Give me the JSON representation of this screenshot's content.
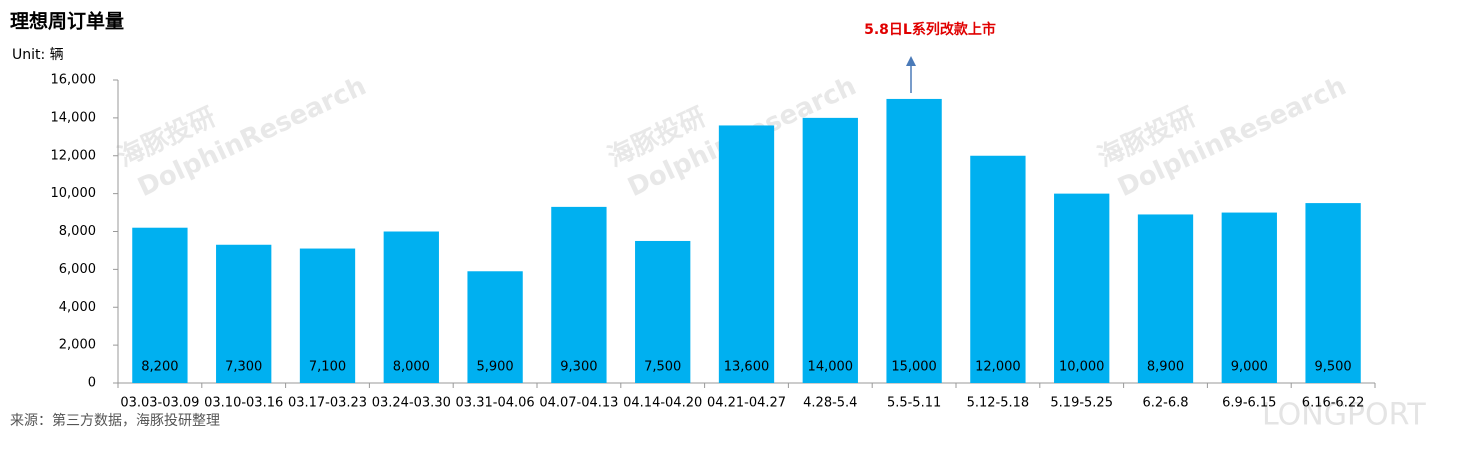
{
  "chart_data": {
    "type": "bar",
    "title": "理想周订单量",
    "unit": "Unit: 辆",
    "annotation": "5.8日L系列改款上市",
    "source": "来源：第三方数据，海豚投研整理",
    "watermarks": [
      "海豚投研",
      "DolphinResearch",
      "LONGPORT"
    ],
    "categories": [
      "03.03-03.09",
      "03.10-03.16",
      "03.17-03.23",
      "03.24-03.30",
      "03.31-04.06",
      "04.07-04.13",
      "04.14-04.20",
      "04.21-04.27",
      "4.28-5.4",
      "5.5-5.11",
      "5.12-5.18",
      "5.19-5.25",
      "6.2-6.8",
      "6.9-6.15",
      "6.16-6.22"
    ],
    "values": [
      8200,
      7300,
      7100,
      8000,
      5900,
      9300,
      7500,
      13600,
      14000,
      15000,
      12000,
      10000,
      8900,
      9000,
      9500
    ],
    "value_labels": [
      "8,200",
      "7,300",
      "7,100",
      "8,000",
      "5,900",
      "9,300",
      "7,500",
      "13,600",
      "14,000",
      "15,000",
      "12,000",
      "10,000",
      "8,900",
      "9,000",
      "9,500"
    ],
    "color": "#00b0f0",
    "ylim": [
      0,
      16000
    ],
    "yticks": [
      0,
      {
        "value": 2000,
        "label": "2,000"
      },
      {
        "value": 4000,
        "label": "4,000"
      },
      {
        "value": 6000,
        "label": "6,000"
      },
      {
        "value": 8000,
        "label": "8,000"
      },
      {
        "value": 10000,
        "label": "10,000"
      },
      {
        "value": 12000,
        "label": "12,000"
      },
      {
        "value": 14000,
        "label": "14,000"
      },
      {
        "value": 16000,
        "label": "16,000"
      }
    ],
    "grid": false
  }
}
